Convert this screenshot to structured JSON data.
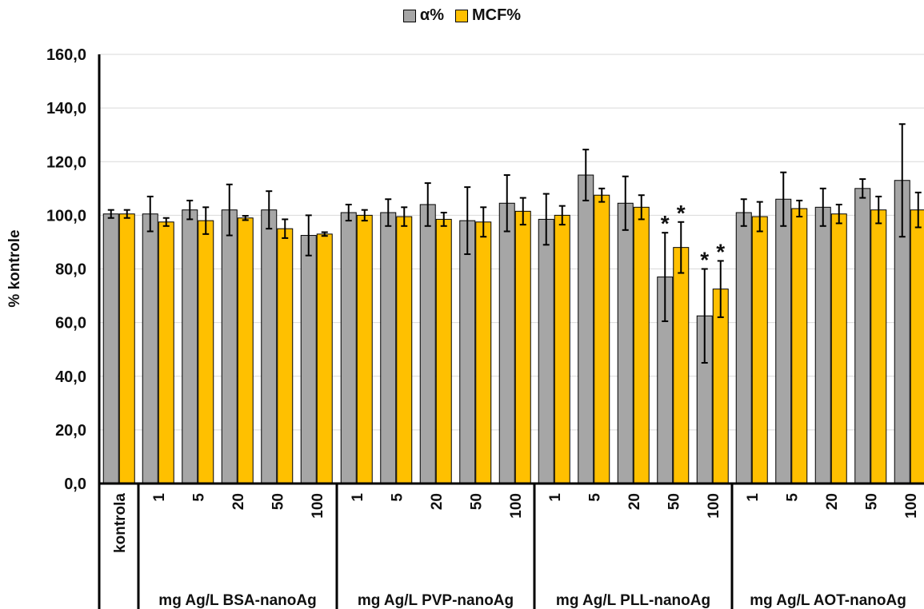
{
  "chart_data": {
    "type": "bar",
    "ylabel": "% kontrole",
    "ylim": [
      0,
      160
    ],
    "yticks": [
      "0,0",
      "20,0",
      "40,0",
      "60,0",
      "80,0",
      "100,0",
      "120,0",
      "140,0",
      "160,0"
    ],
    "grid": true,
    "legend_position": "top-center",
    "colors": {
      "alpha": "#a6a6a6",
      "mcf": "#ffc000",
      "axis": "#000000",
      "grid": "#d9d9d9"
    },
    "series": [
      {
        "name": "α%",
        "key": "alpha"
      },
      {
        "name": "MCF%",
        "key": "mcf"
      }
    ],
    "groups": [
      {
        "label": "",
        "categories": [
          {
            "label": "kontrola",
            "alpha": 100.5,
            "alpha_err": 1.5,
            "mcf": 100.5,
            "mcf_err": 1.5
          }
        ]
      },
      {
        "label": "mg Ag/L BSA-nanoAg",
        "categories": [
          {
            "label": "1",
            "alpha": 100.5,
            "alpha_err": 6.5,
            "mcf": 97.5,
            "mcf_err": 1.5
          },
          {
            "label": "5",
            "alpha": 102.0,
            "alpha_err": 3.5,
            "mcf": 98.0,
            "mcf_err": 5.0
          },
          {
            "label": "20",
            "alpha": 102.0,
            "alpha_err": 9.5,
            "mcf": 99.0,
            "mcf_err": 0.8
          },
          {
            "label": "50",
            "alpha": 102.0,
            "alpha_err": 7.0,
            "mcf": 95.0,
            "mcf_err": 3.5
          },
          {
            "label": "100",
            "alpha": 92.5,
            "alpha_err": 7.5,
            "mcf": 93.0,
            "mcf_err": 0.7
          }
        ]
      },
      {
        "label": "mg Ag/L PVP-nanoAg",
        "categories": [
          {
            "label": "1",
            "alpha": 101.0,
            "alpha_err": 3.0,
            "mcf": 100.0,
            "mcf_err": 2.0
          },
          {
            "label": "5",
            "alpha": 101.0,
            "alpha_err": 5.0,
            "mcf": 99.5,
            "mcf_err": 3.5
          },
          {
            "label": "20",
            "alpha": 104.0,
            "alpha_err": 8.0,
            "mcf": 98.5,
            "mcf_err": 2.5
          },
          {
            "label": "50",
            "alpha": 98.0,
            "alpha_err": 12.5,
            "mcf": 97.5,
            "mcf_err": 5.5
          },
          {
            "label": "100",
            "alpha": 104.5,
            "alpha_err": 10.5,
            "mcf": 101.5,
            "mcf_err": 5.0
          }
        ]
      },
      {
        "label": "mg Ag/L PLL-nanoAg",
        "categories": [
          {
            "label": "1",
            "alpha": 98.5,
            "alpha_err": 9.5,
            "mcf": 100.0,
            "mcf_err": 3.5
          },
          {
            "label": "5",
            "alpha": 115.0,
            "alpha_err": 9.5,
            "mcf": 107.5,
            "mcf_err": 2.5
          },
          {
            "label": "20",
            "alpha": 104.5,
            "alpha_err": 10.0,
            "mcf": 103.0,
            "mcf_err": 4.5
          },
          {
            "label": "50",
            "alpha": 77.0,
            "alpha_err": 16.5,
            "mcf": 88.0,
            "mcf_err": 9.5,
            "alpha_sig": "*",
            "mcf_sig": "*"
          },
          {
            "label": "100",
            "alpha": 62.5,
            "alpha_err": 17.5,
            "mcf": 72.5,
            "mcf_err": 10.5,
            "alpha_sig": "*",
            "mcf_sig": "*"
          }
        ]
      },
      {
        "label": "mg Ag/L AOT-nanoAg",
        "categories": [
          {
            "label": "1",
            "alpha": 101.0,
            "alpha_err": 5.0,
            "mcf": 99.5,
            "mcf_err": 5.5
          },
          {
            "label": "5",
            "alpha": 106.0,
            "alpha_err": 10.0,
            "mcf": 102.5,
            "mcf_err": 3.0
          },
          {
            "label": "20",
            "alpha": 103.0,
            "alpha_err": 7.0,
            "mcf": 100.5,
            "mcf_err": 3.5
          },
          {
            "label": "50",
            "alpha": 110.0,
            "alpha_err": 3.5,
            "mcf": 102.0,
            "mcf_err": 5.0
          },
          {
            "label": "100",
            "alpha": 113.0,
            "alpha_err": 21.0,
            "mcf": 102.0,
            "mcf_err": 6.5
          }
        ]
      }
    ]
  }
}
